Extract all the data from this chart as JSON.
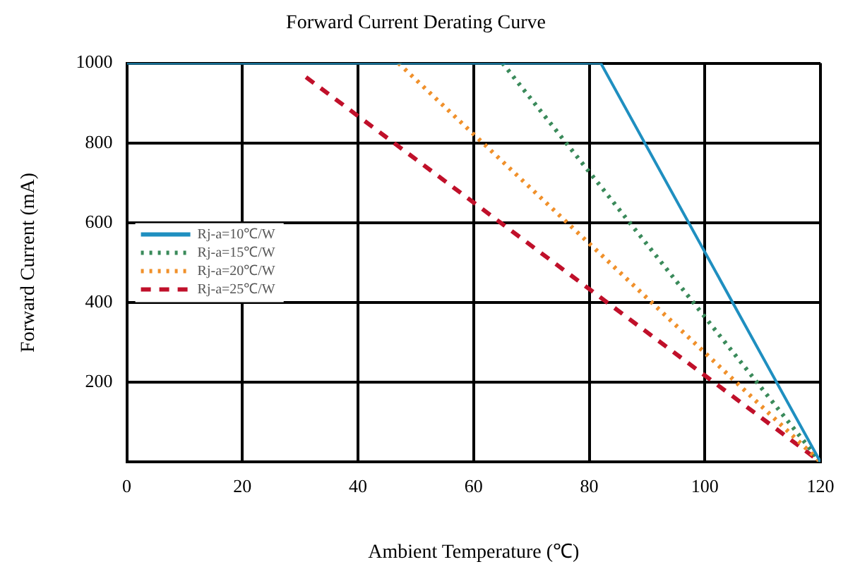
{
  "chart_data": {
    "type": "line",
    "title": "Forward Current Derating Curve",
    "xlabel": "Ambient Temperature (℃)",
    "ylabel": "Forward Current (mA)",
    "xlim": [
      0,
      120
    ],
    "xticks": [
      0,
      20,
      40,
      60,
      80,
      100,
      120
    ],
    "ylim": [
      0,
      1000
    ],
    "yticks": [
      200,
      400,
      600,
      800,
      1000
    ],
    "grid": true,
    "legend": "left",
    "marker": "none",
    "series": [
      {
        "name": "Rj-a=10℃/W",
        "color": "#1f8fc0",
        "line_style": "solid",
        "x": [
          0,
          82,
          120
        ],
        "values": [
          1000,
          1000,
          0
        ]
      },
      {
        "name": "Rj-a=15℃/W",
        "color": "#3a8a5a",
        "line_style": "dotted",
        "x": [
          65,
          120
        ],
        "values": [
          1000,
          0
        ]
      },
      {
        "name": "Rj-a=20℃/W",
        "color": "#f0902a",
        "line_style": "dotted",
        "x": [
          47,
          120
        ],
        "values": [
          1000,
          0
        ]
      },
      {
        "name": "Rj-a=25℃/W",
        "color": "#c0102a",
        "line_style": "dashed",
        "x": [
          31,
          120
        ],
        "values": [
          965,
          0
        ]
      }
    ]
  }
}
